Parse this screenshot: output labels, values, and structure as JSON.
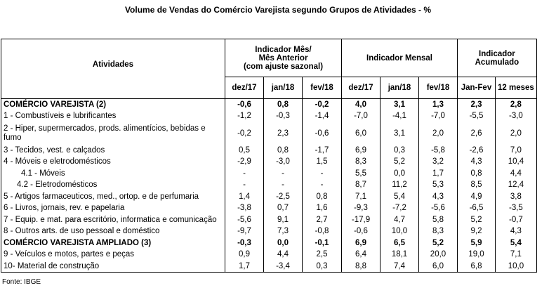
{
  "title": "Volume de Vendas do Comércio Varejista segundo Grupos de Atividades - %",
  "headers": {
    "atividades": "Atividades",
    "group1": [
      "Indicador Mês/",
      "Mês Anterior",
      "(com ajuste sazonal)"
    ],
    "group2": "Indicador Mensal",
    "group3": [
      "Indicador",
      "Acumulado"
    ],
    "cols": [
      "dez/17",
      "jan/18",
      "fev/18",
      "dez/17",
      "jan/18",
      "fev/18",
      "Jan-Fev",
      "12 meses"
    ]
  },
  "rows": [
    {
      "label": "COMÉRCIO VAREJISTA (2)",
      "values": [
        "-0,6",
        "0,8",
        "-0,2",
        "4,0",
        "3,1",
        "1,3",
        "2,3",
        "2,8"
      ]
    },
    {
      "label": "1 - Combustíveis e lubrificantes",
      "values": [
        "-1,2",
        "-0,3",
        "-1,4",
        "-7,0",
        "-4,1",
        "-7,0",
        "-5,5",
        "-3,0"
      ]
    },
    {
      "label": "2 - Hiper, supermercados, prods. alimentícios, bebidas e fumo",
      "values": [
        "-0,2",
        "2,3",
        "-0,6",
        "6,0",
        "3,1",
        "2,0",
        "2,6",
        "2,0"
      ]
    },
    {
      "label": "3 - Tecidos, vest. e calçados",
      "values": [
        "0,5",
        "0,8",
        "-1,7",
        "6,9",
        "0,3",
        "-5,8",
        "-2,6",
        "7,0"
      ]
    },
    {
      "label": "4 - Móveis e eletrodomésticos",
      "values": [
        "-2,9",
        "-3,0",
        "1,5",
        "8,3",
        "5,2",
        "3,2",
        "4,3",
        "10,4"
      ]
    },
    {
      "label": "4.1 - Móveis",
      "values": [
        "-",
        "-",
        "-",
        "5,5",
        "0,0",
        "1,7",
        "0,8",
        "4,4"
      ]
    },
    {
      "label": "4.2 - Eletrodomésticos",
      "values": [
        "-",
        "-",
        "-",
        "8,7",
        "11,2",
        "5,3",
        "8,5",
        "12,4"
      ]
    },
    {
      "label": "5 - Artigos farmaceuticos, med., ortop. e de perfumaria",
      "values": [
        "1,4",
        "-2,5",
        "0,8",
        "7,1",
        "5,4",
        "4,3",
        "4,9",
        "3,8"
      ]
    },
    {
      "label": "6 - Livros, jornais, rev. e papelaria",
      "values": [
        "-3,8",
        "0,7",
        "1,6",
        "-9,3",
        "-7,2",
        "-5,6",
        "-6,5",
        "-3,5"
      ]
    },
    {
      "label": "7 - Equip. e mat. para escritório, informatica e comunicação",
      "values": [
        "-5,6",
        "9,1",
        "2,7",
        "-17,9",
        "4,7",
        "5,8",
        "5,2",
        "-0,7"
      ]
    },
    {
      "label": "8 - Outros arts. de uso pessoal e doméstico",
      "values": [
        "-9,7",
        "7,3",
        "-0,8",
        "-0,6",
        "10,0",
        "8,3",
        "9,2",
        "4,3"
      ]
    },
    {
      "label": "COMÉRCIO VAREJISTA AMPLIADO (3)",
      "values": [
        "-0,3",
        "0,0",
        "-0,1",
        "6,9",
        "6,5",
        "5,2",
        "5,9",
        "5,4"
      ]
    },
    {
      "label": "9 - Veículos e motos, partes e peças",
      "values": [
        "0,9",
        "4,4",
        "2,5",
        "6,4",
        "18,1",
        "20,0",
        "19,0",
        "7,1"
      ]
    },
    {
      "label": "10- Material de construção",
      "values": [
        "1,7",
        "-3,4",
        "0,3",
        "8,8",
        "7,4",
        "6,0",
        "6,8",
        "10,0"
      ]
    }
  ],
  "source": "Fonte: IBGE"
}
